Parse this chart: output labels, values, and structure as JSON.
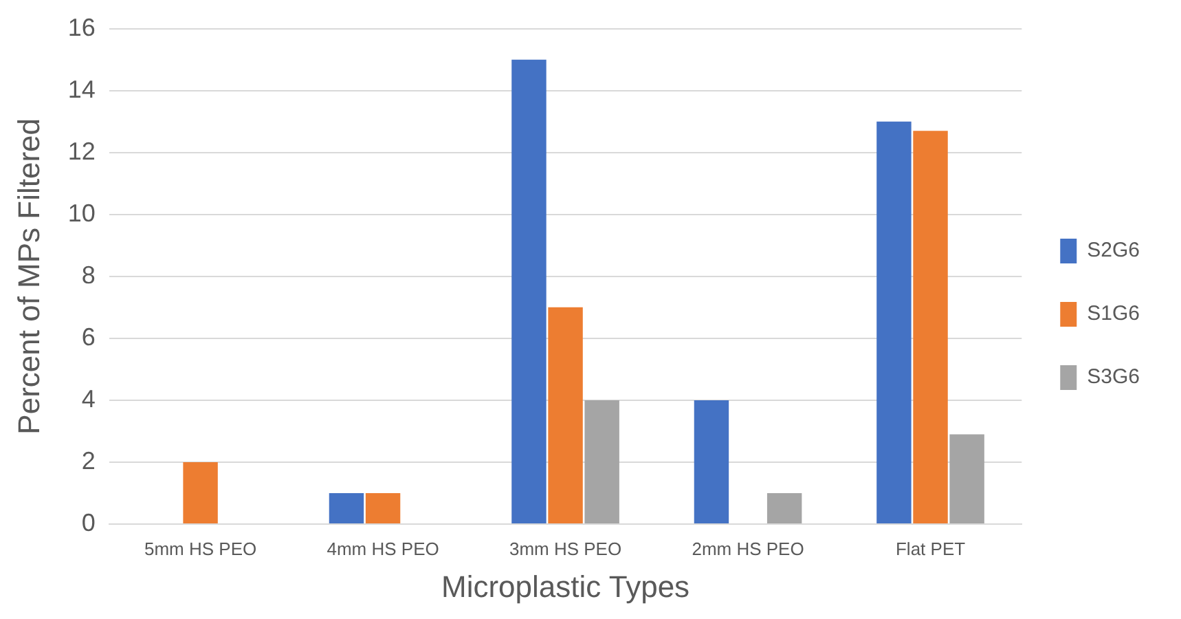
{
  "chart_data": {
    "type": "bar",
    "xlabel": "Microplastic Types",
    "ylabel": "Percent of MPs Filtered",
    "categories": [
      "5mm HS PEO",
      "4mm HS PEO",
      "3mm HS PEO",
      "2mm HS PEO",
      "Flat PET"
    ],
    "series": [
      {
        "name": "S2G6",
        "color": "#4472c4",
        "values": [
          0,
          1,
          15,
          4,
          13
        ]
      },
      {
        "name": "S1G6",
        "color": "#ed7d31",
        "values": [
          2,
          1,
          7,
          0,
          12.7
        ]
      },
      {
        "name": "S3G6",
        "color": "#a5a5a5",
        "values": [
          0,
          0,
          4,
          1,
          2.9
        ]
      }
    ],
    "ylim": [
      0,
      16
    ],
    "yticks": [
      0,
      2,
      4,
      6,
      8,
      10,
      12,
      14,
      16
    ],
    "grid": "y",
    "legend": "right"
  }
}
